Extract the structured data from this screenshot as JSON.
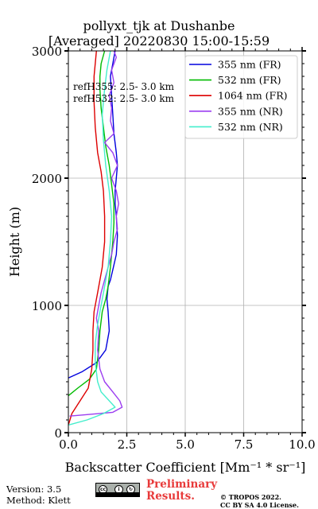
{
  "chart_data": {
    "type": "line",
    "title": "pollyxt_tjk at Dushanbe",
    "subtitle": "[Averaged] 20220830 15:00-15:59",
    "xlabel": "Backscatter Coefficient [Mm⁻¹ * sr⁻¹]",
    "ylabel": "Height (m)",
    "xlim": [
      0,
      10
    ],
    "ylim": [
      0,
      3000
    ],
    "xticks": [
      "0.0",
      "2.5",
      "5.0",
      "7.5",
      "10.0"
    ],
    "yticks": [
      "0",
      "1000",
      "2000",
      "3000"
    ],
    "grid": true,
    "legend_position": "top-right",
    "annotations": [
      "refH355:  2.5- 3.0 km",
      "refH532:  2.5- 3.0 km"
    ],
    "series": [
      {
        "name": "355 nm (FR)",
        "color": "#0000dd",
        "x": [
          0,
          0.6,
          1.2,
          1.6,
          1.75,
          1.7,
          1.65,
          1.7,
          1.8,
          1.9,
          2.05,
          2.1,
          2.05,
          2.0,
          2.0,
          2.05,
          2.1,
          2.05,
          1.95,
          1.9,
          1.85,
          1.8,
          1.9,
          2.0
        ],
        "y": [
          430,
          480,
          550,
          650,
          800,
          950,
          1050,
          1150,
          1200,
          1280,
          1400,
          1550,
          1700,
          1800,
          1900,
          2000,
          2100,
          2200,
          2350,
          2500,
          2650,
          2800,
          2900,
          3000
        ]
      },
      {
        "name": "532 nm (FR)",
        "color": "#00bb00",
        "x": [
          0,
          0.4,
          0.9,
          1.2,
          1.3,
          1.35,
          1.45,
          1.6,
          1.7,
          1.8,
          1.9,
          1.95,
          1.95,
          1.85,
          1.75,
          1.6,
          1.5,
          1.4,
          1.35,
          1.35,
          1.4,
          1.55
        ],
        "y": [
          290,
          350,
          420,
          500,
          650,
          800,
          950,
          1050,
          1150,
          1300,
          1500,
          1650,
          1800,
          1950,
          2100,
          2250,
          2400,
          2550,
          2700,
          2800,
          2900,
          3000
        ]
      },
      {
        "name": "1064 nm (FR)",
        "color": "#dd0000",
        "x": [
          0,
          0.15,
          0.5,
          0.85,
          1.0,
          1.05,
          1.05,
          1.1,
          1.25,
          1.45,
          1.55,
          1.55,
          1.5,
          1.4,
          1.25,
          1.15,
          1.1,
          1.1,
          1.15,
          1.2
        ],
        "y": [
          60,
          150,
          250,
          350,
          500,
          650,
          800,
          950,
          1100,
          1300,
          1500,
          1700,
          1900,
          2050,
          2200,
          2400,
          2600,
          2800,
          2900,
          3000
        ]
      },
      {
        "name": "355 nm (NR)",
        "color": "#9b3df0",
        "x": [
          0.05,
          0.7,
          1.9,
          2.3,
          2.2,
          1.9,
          1.55,
          1.35,
          1.25,
          1.3,
          1.2,
          1.3,
          1.4,
          1.55,
          1.7,
          1.85,
          1.95,
          2.1,
          2.05,
          2.15,
          2.05,
          1.85,
          2.1,
          1.9,
          1.55,
          1.95,
          1.8,
          1.85,
          1.75,
          1.95,
          1.85,
          2.05,
          1.95
        ],
        "y": [
          130,
          140,
          160,
          200,
          250,
          320,
          400,
          500,
          650,
          800,
          900,
          1000,
          1100,
          1200,
          1300,
          1400,
          1500,
          1600,
          1700,
          1800,
          1900,
          2000,
          2100,
          2200,
          2280,
          2350,
          2450,
          2550,
          2650,
          2750,
          2850,
          2950,
          3000
        ]
      },
      {
        "name": "532 nm (NR)",
        "color": "#44eecc",
        "x": [
          0,
          0.8,
          1.5,
          2.0,
          1.7,
          1.4,
          1.25,
          1.15,
          1.15,
          1.25,
          1.4,
          1.55,
          1.7,
          1.8,
          1.85,
          1.75,
          1.6,
          1.5,
          1.45,
          1.55,
          1.65,
          1.8
        ],
        "y": [
          60,
          100,
          150,
          200,
          260,
          320,
          400,
          550,
          700,
          850,
          1000,
          1150,
          1300,
          1500,
          1700,
          1900,
          2100,
          2300,
          2500,
          2700,
          2850,
          3000
        ]
      }
    ]
  },
  "footer": {
    "version": "Version: 3.5",
    "method": "Method: Klett",
    "license_badge": "CC BY SA",
    "preliminary_line1": "Preliminary",
    "preliminary_line2": "Results.",
    "copyright_line1": "© TROPOS 2022.",
    "copyright_line2": "CC BY SA 4.0 License."
  }
}
